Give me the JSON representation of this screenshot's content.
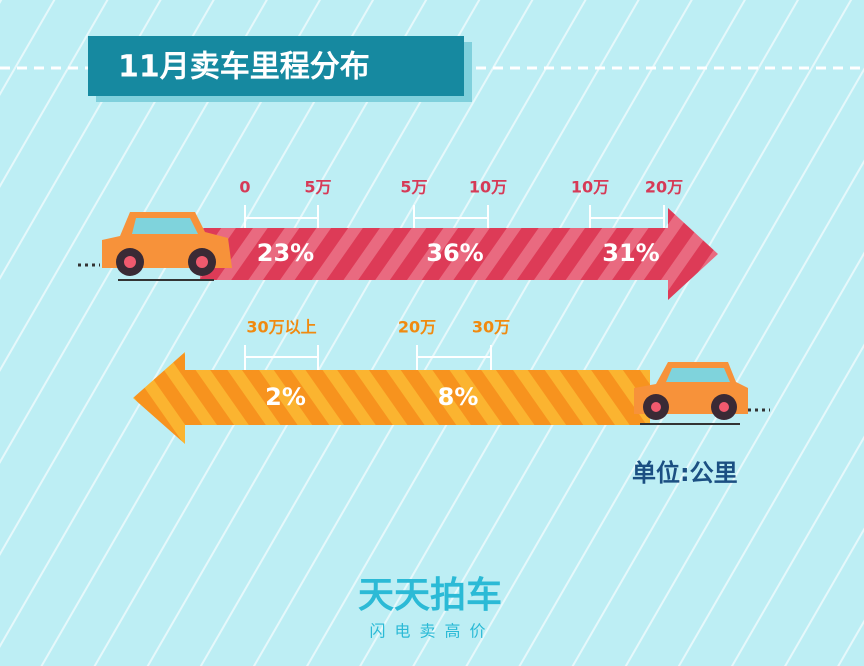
{
  "title": "11月卖车里程分布",
  "arrows": [
    {
      "segments": [
        {
          "range": [
            "0",
            "5万"
          ],
          "share": "23%"
        },
        {
          "range": [
            "5万",
            "10万"
          ],
          "share": "36%"
        },
        {
          "range": [
            "10万",
            "20万"
          ],
          "share": "31%"
        }
      ]
    },
    {
      "segments": [
        {
          "range": [
            "30万以上"
          ],
          "share": "2%"
        },
        {
          "range": [
            "20万",
            "30万"
          ],
          "share": "8%"
        }
      ]
    }
  ],
  "unit": "单位:公里",
  "brand": {
    "name": "天天拍车",
    "slogan": "闪电卖高价"
  }
}
